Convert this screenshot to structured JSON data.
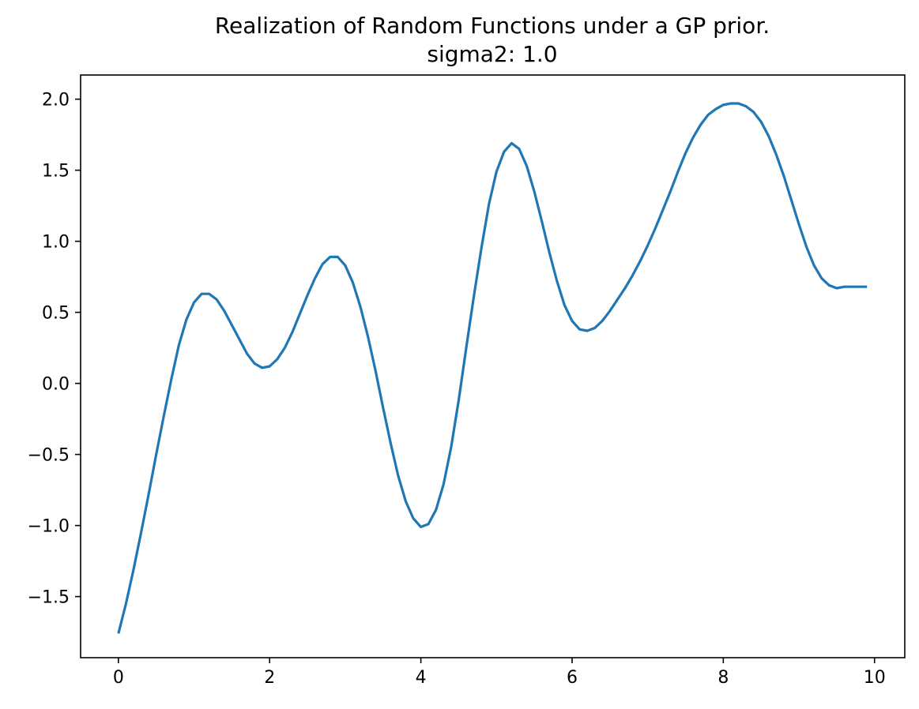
{
  "chart_data": {
    "type": "line",
    "title": "Realization of Random Functions under a GP prior.",
    "subtitle": "sigma2: 1.0",
    "xlabel": "",
    "ylabel": "",
    "xlim": [
      -0.5,
      10.4
    ],
    "ylim": [
      -1.93,
      2.17
    ],
    "grid": false,
    "line_color": "#1f77b4",
    "xticks": [
      0,
      2,
      4,
      6,
      8,
      10
    ],
    "yticks": [
      -1.5,
      -1.0,
      -0.5,
      0.0,
      0.5,
      1.0,
      1.5,
      2.0
    ],
    "xtick_labels": [
      "0",
      "2",
      "4",
      "6",
      "8",
      "10"
    ],
    "ytick_labels": [
      "−1.5",
      "−1.0",
      "−0.5",
      "0.0",
      "0.5",
      "1.0",
      "1.5",
      "2.0"
    ],
    "series": [
      {
        "x": [
          0.0,
          0.1,
          0.2,
          0.3,
          0.4,
          0.5,
          0.6,
          0.7,
          0.8,
          0.9,
          1.0,
          1.1,
          1.2,
          1.3,
          1.4,
          1.5,
          1.6,
          1.7,
          1.8,
          1.9,
          2.0,
          2.1,
          2.2,
          2.3,
          2.4,
          2.5,
          2.6,
          2.7,
          2.8,
          2.9,
          3.0,
          3.1,
          3.2,
          3.3,
          3.4,
          3.5,
          3.6,
          3.7,
          3.8,
          3.9,
          4.0,
          4.1,
          4.2,
          4.3,
          4.4,
          4.5,
          4.6,
          4.7,
          4.8,
          4.9,
          5.0,
          5.1,
          5.2,
          5.3,
          5.4,
          5.5,
          5.6,
          5.7,
          5.8,
          5.9,
          6.0,
          6.1,
          6.2,
          6.3,
          6.4,
          6.5,
          6.6,
          6.7,
          6.8,
          6.9,
          7.0,
          7.1,
          7.2,
          7.3,
          7.4,
          7.5,
          7.6,
          7.7,
          7.8,
          7.9,
          8.0,
          8.1,
          8.2,
          8.3,
          8.4,
          8.5,
          8.6,
          8.7,
          8.8,
          8.9,
          9.0,
          9.1,
          9.2,
          9.3,
          9.4,
          9.5,
          9.6,
          9.7,
          9.8,
          9.9
        ],
        "values": [
          -1.76,
          -1.55,
          -1.31,
          -1.05,
          -0.78,
          -0.5,
          -0.23,
          0.03,
          0.27,
          0.45,
          0.57,
          0.63,
          0.63,
          0.59,
          0.51,
          0.41,
          0.31,
          0.21,
          0.14,
          0.11,
          0.12,
          0.17,
          0.25,
          0.36,
          0.49,
          0.62,
          0.74,
          0.84,
          0.89,
          0.89,
          0.83,
          0.71,
          0.54,
          0.33,
          0.09,
          -0.17,
          -0.42,
          -0.65,
          -0.83,
          -0.95,
          -1.01,
          -0.99,
          -0.89,
          -0.71,
          -0.45,
          -0.12,
          0.25,
          0.61,
          0.95,
          1.26,
          1.49,
          1.63,
          1.69,
          1.65,
          1.53,
          1.35,
          1.14,
          0.92,
          0.72,
          0.55,
          0.44,
          0.38,
          0.37,
          0.39,
          0.44,
          0.51,
          0.59,
          0.67,
          0.76,
          0.86,
          0.97,
          1.09,
          1.22,
          1.35,
          1.49,
          1.62,
          1.73,
          1.82,
          1.89,
          1.93,
          1.96,
          1.97,
          1.97,
          1.95,
          1.91,
          1.84,
          1.74,
          1.61,
          1.46,
          1.29,
          1.12,
          0.96,
          0.83,
          0.74,
          0.69,
          0.67,
          0.68,
          0.68,
          0.68,
          0.68
        ]
      }
    ]
  }
}
